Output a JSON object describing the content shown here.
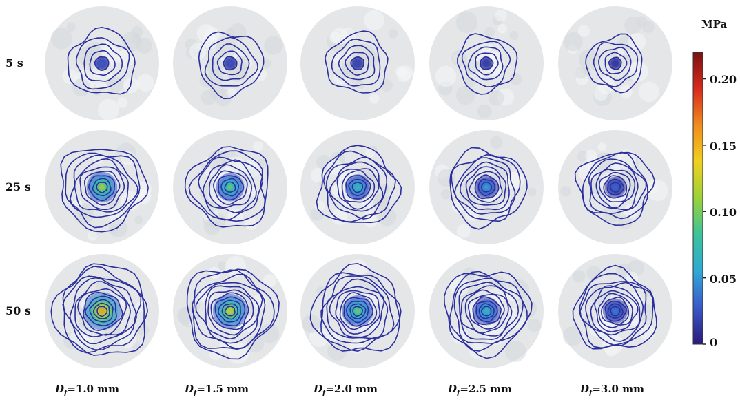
{
  "rows": [
    {
      "label": "5 s",
      "intensity": 0.1,
      "rings": 5
    },
    {
      "label": "25 s",
      "intensity": 0.55,
      "rings": 9
    },
    {
      "label": "50 s",
      "intensity": 0.75,
      "rings": 11
    }
  ],
  "columns": [
    {
      "prefix": "D",
      "sub": "f",
      "value": "=1.0 mm",
      "peak_mpa": 0.2
    },
    {
      "prefix": "D",
      "sub": "f",
      "value": "=1.5 mm",
      "peak_mpa": 0.16
    },
    {
      "prefix": "D",
      "sub": "f",
      "value": "=2.0 mm",
      "peak_mpa": 0.12
    },
    {
      "prefix": "D",
      "sub": "f",
      "value": "=2.5 mm",
      "peak_mpa": 0.08
    },
    {
      "prefix": "D",
      "sub": "f",
      "value": "=3.0 mm",
      "peak_mpa": 0.04
    }
  ],
  "colorbar": {
    "unit": "MPa",
    "min": 0,
    "max": 0.22,
    "ticks": [
      "0.20",
      "0.15",
      "0.10",
      "0.05",
      "0"
    ],
    "tick_values": [
      0.2,
      0.15,
      0.1,
      0.05,
      0
    ],
    "colors": [
      "#2a1a7a",
      "#3a58c8",
      "#2fa9d6",
      "#3cc29a",
      "#9ad23a",
      "#f0d020",
      "#f08c1e",
      "#d82a1e",
      "#7a1210"
    ]
  },
  "contour_color": "#2b2f9e"
}
